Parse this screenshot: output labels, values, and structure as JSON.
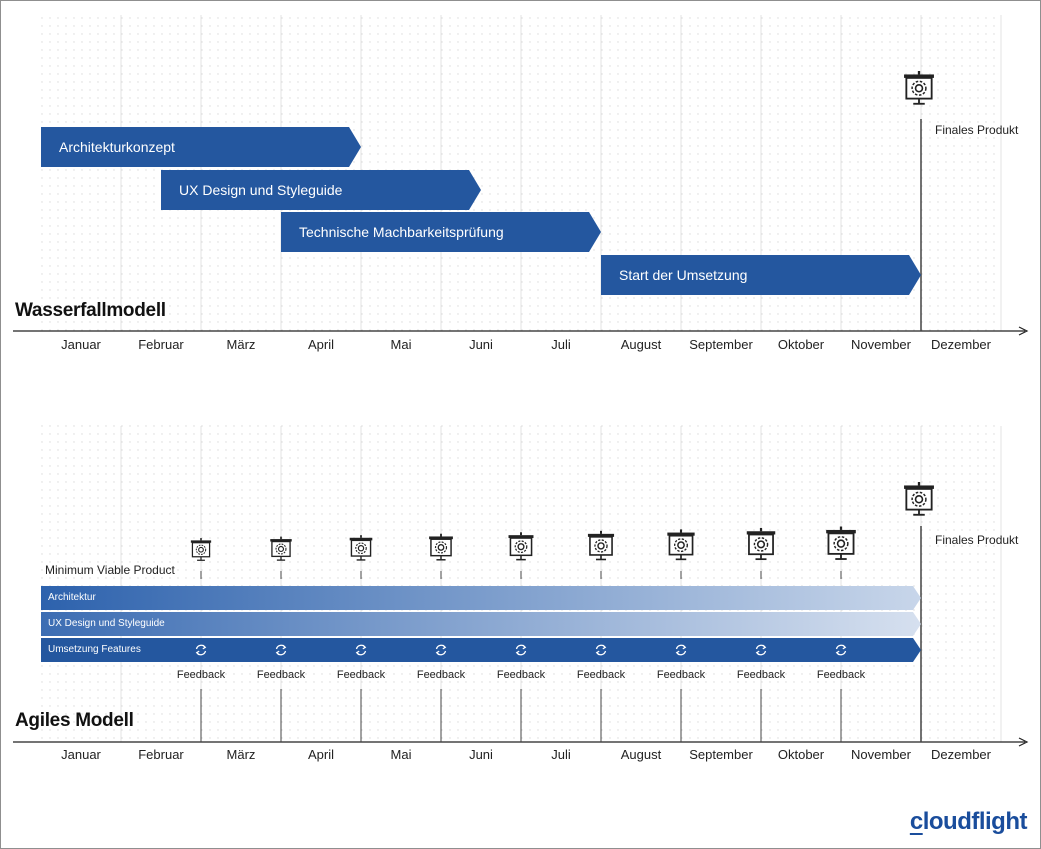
{
  "months": [
    "Januar",
    "Februar",
    "März",
    "April",
    "Mai",
    "Juni",
    "Juli",
    "August",
    "September",
    "Oktober",
    "November",
    "Dezember"
  ],
  "waterfall": {
    "title": "Wasserfallmodell",
    "final_product": "Finales Produkt",
    "phases": [
      {
        "label": "Architekturkonzept",
        "start_month": 0,
        "end_month": 4
      },
      {
        "label": "UX Design und Styleguide",
        "start_month": 1.5,
        "end_month": 5.5
      },
      {
        "label": "Technische Machbarkeitsprüfung",
        "start_month": 3,
        "end_month": 7
      },
      {
        "label": "Start der Umsetzung",
        "start_month": 7,
        "end_month": 11
      }
    ]
  },
  "agile": {
    "title": "Agiles Modell",
    "mvp": "Minimum Viable Product",
    "final_product": "Finales Produkt",
    "feedback_label": "Feedback",
    "tracks": [
      {
        "label": "Architektur"
      },
      {
        "label": "UX Design und Styleguide"
      },
      {
        "label": "Umsetzung Features"
      }
    ],
    "iteration_points": [
      2,
      3,
      4,
      5,
      6,
      7,
      8,
      9,
      10
    ]
  },
  "brand": {
    "logo_first": "c",
    "logo_rest": "loudflight"
  },
  "colors": {
    "bar": "#24579f",
    "text_dark": "#111111",
    "accent": "#1a4d9c"
  }
}
